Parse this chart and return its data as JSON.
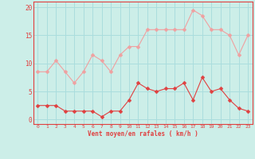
{
  "hours": [
    0,
    1,
    2,
    3,
    4,
    5,
    6,
    7,
    8,
    9,
    10,
    11,
    12,
    13,
    14,
    15,
    16,
    17,
    18,
    19,
    20,
    21,
    22,
    23
  ],
  "wind_avg": [
    2.5,
    2.5,
    2.5,
    1.5,
    1.5,
    1.5,
    1.5,
    0.5,
    1.5,
    1.5,
    3.5,
    6.5,
    5.5,
    5.0,
    5.5,
    5.5,
    6.5,
    3.5,
    7.5,
    5.0,
    5.5,
    3.5,
    2.0,
    1.5
  ],
  "wind_gust": [
    8.5,
    8.5,
    10.5,
    8.5,
    6.5,
    8.5,
    11.5,
    10.5,
    8.5,
    11.5,
    13.0,
    13.0,
    16.0,
    16.0,
    16.0,
    16.0,
    16.0,
    19.5,
    18.5,
    16.0,
    16.0,
    15.0,
    11.5,
    15.0
  ],
  "avg_color": "#e04040",
  "gust_color": "#f0a0a0",
  "bg_color": "#cceee8",
  "grid_color": "#aadddd",
  "xlabel": "Vent moyen/en rafales ( km/h )",
  "ylabel_ticks": [
    0,
    5,
    10,
    15,
    20
  ],
  "ylim": [
    -0.8,
    21
  ],
  "xlim": [
    -0.5,
    23.5
  ]
}
